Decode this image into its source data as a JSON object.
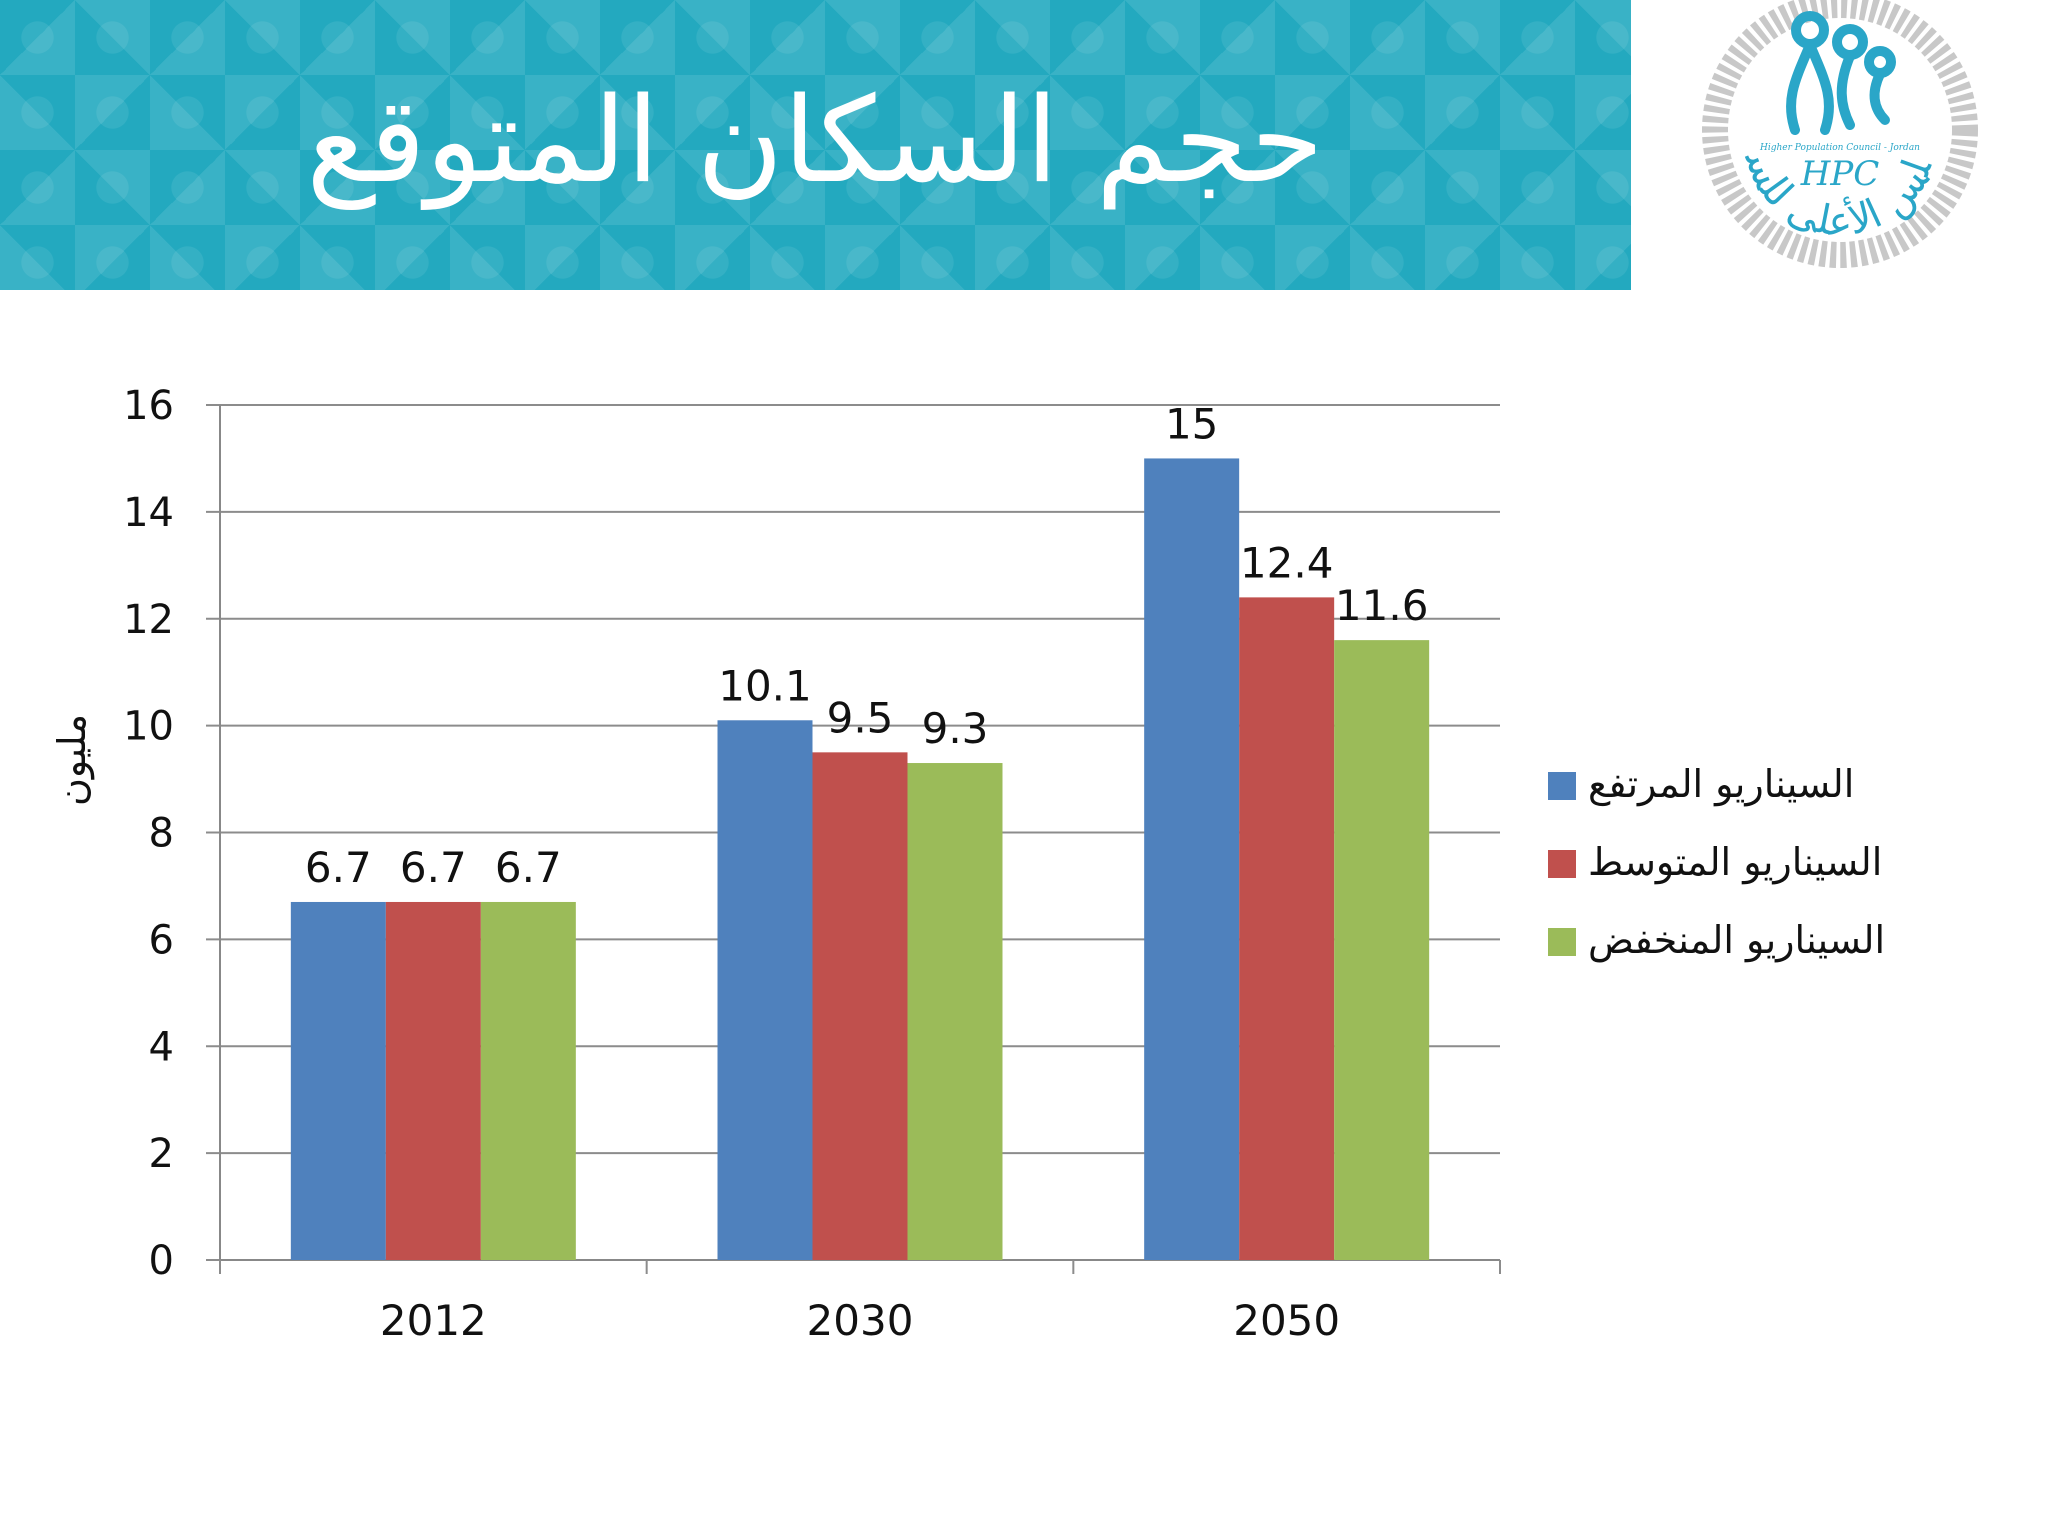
{
  "header": {
    "title": "حجم السكان المتوقع"
  },
  "logo": {
    "abbr": "HPC",
    "english_name": "Higher Population Council - Jordan",
    "arabic_name": "المجلس الأعلى للسكان"
  },
  "chart_data": {
    "type": "bar",
    "categories": [
      "2012",
      "2030",
      "2050"
    ],
    "series": [
      {
        "name": "السيناريو المرتفع",
        "values": [
          6.7,
          10.1,
          15
        ],
        "color": "#4f81bd"
      },
      {
        "name": "السيناريو المتوسط",
        "values": [
          6.7,
          9.5,
          12.4
        ],
        "color": "#c0504d"
      },
      {
        "name": "السيناريو المنخفض",
        "values": [
          6.7,
          9.3,
          11.6
        ],
        "color": "#9bbb59"
      }
    ],
    "data_labels": [
      [
        "6.7",
        "10.1",
        "15"
      ],
      [
        "6.7",
        "9.5",
        "12.4"
      ],
      [
        "6.7",
        "9.3",
        "11.6"
      ]
    ],
    "ylabel": "مليون",
    "ylim": [
      0,
      16
    ],
    "yticks": [
      "0",
      "2",
      "4",
      "6",
      "8",
      "10",
      "12",
      "14",
      "16"
    ],
    "grid": true,
    "legend_position": "right"
  }
}
